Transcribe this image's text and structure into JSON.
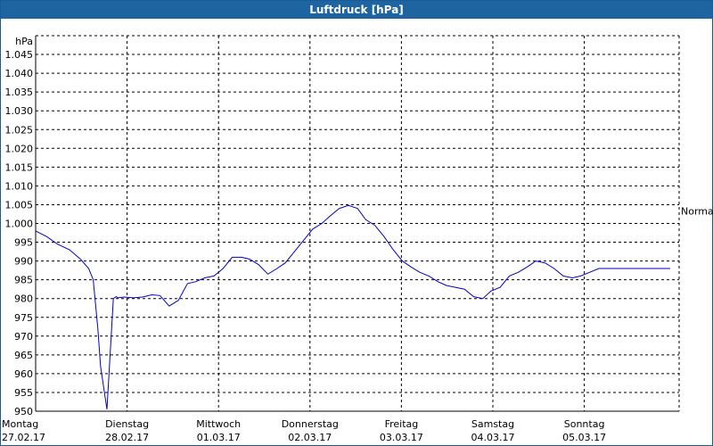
{
  "window": {
    "title": "Luftdruck [hPa]"
  },
  "chart_data": {
    "type": "line",
    "title": "Luftdruck [hPa]",
    "ylabel": "hPa",
    "xlabel": "",
    "ylim": [
      950,
      1050
    ],
    "yticks": [
      950,
      955,
      960,
      965,
      970,
      975,
      980,
      985,
      990,
      995,
      1000,
      1005,
      1010,
      1015,
      1020,
      1025,
      1030,
      1035,
      1040,
      1045
    ],
    "ytick_labels": [
      "950",
      "955",
      "960",
      "965",
      "970",
      "975",
      "980",
      "985",
      "990",
      "995",
      "1.000",
      "1.005",
      "1.010",
      "1.015",
      "1.020",
      "1.025",
      "1.030",
      "1.035",
      "1.040",
      "1.045"
    ],
    "x_range_days": [
      0,
      7
    ],
    "days": [
      {
        "name": "Montag",
        "date": "27.02.17"
      },
      {
        "name": "Dienstag",
        "date": "28.02.17"
      },
      {
        "name": "Mittwoch",
        "date": "01.03.17"
      },
      {
        "name": "Donnerstag",
        "date": "02.03.17"
      },
      {
        "name": "Freitag",
        "date": "03.03.17"
      },
      {
        "name": "Samstag",
        "date": "04.03.17"
      },
      {
        "name": "Sonntag",
        "date": "05.03.17"
      }
    ],
    "reference_line": {
      "label": "Normal",
      "value": 1003.3
    },
    "grid": true,
    "series": [
      {
        "color": "#0000c8",
        "x": [
          0.0,
          0.12,
          0.24,
          0.37,
          0.49,
          0.58,
          0.63,
          0.68,
          0.71,
          0.78,
          0.85,
          0.88,
          0.9,
          0.97,
          1.07,
          1.17,
          1.27,
          1.36,
          1.46,
          1.56,
          1.66,
          1.75,
          1.85,
          1.95,
          2.05,
          2.15,
          2.25,
          2.34,
          2.44,
          2.54,
          2.64,
          2.73,
          2.83,
          2.93,
          3.03,
          3.13,
          3.22,
          3.32,
          3.42,
          3.52,
          3.61,
          3.71,
          3.81,
          3.91,
          4.01,
          4.1,
          4.2,
          4.3,
          4.4,
          4.49,
          4.59,
          4.69,
          4.79,
          4.89,
          4.98,
          5.08,
          5.18,
          5.28,
          5.38,
          5.47,
          5.57,
          5.67,
          5.77,
          5.87,
          5.96,
          6.06,
          6.16,
          6.26,
          6.35,
          6.45,
          6.55,
          6.65,
          6.75,
          6.84,
          6.94
        ],
        "values": [
          998,
          996.5,
          994.5,
          993,
          990.5,
          988,
          985,
          972,
          962,
          950.5,
          980,
          980.5,
          980.2,
          980.4,
          980.2,
          980.4,
          981,
          980.8,
          978,
          979.5,
          984,
          984.5,
          985.5,
          986,
          988,
          991,
          991,
          990.5,
          989,
          986.5,
          988,
          989.5,
          992.5,
          995.5,
          998.5,
          1000,
          1002,
          1004,
          1004.8,
          1004,
          1001,
          999.5,
          996.5,
          993,
          990,
          988.5,
          987,
          986,
          984.5,
          983.5,
          983,
          982.5,
          980.5,
          980,
          982,
          983,
          986,
          987,
          988.5,
          990,
          989.5,
          988,
          986,
          985.5,
          986,
          987,
          988,
          988,
          988,
          988,
          988,
          988,
          988,
          988,
          988
        ]
      }
    ]
  }
}
